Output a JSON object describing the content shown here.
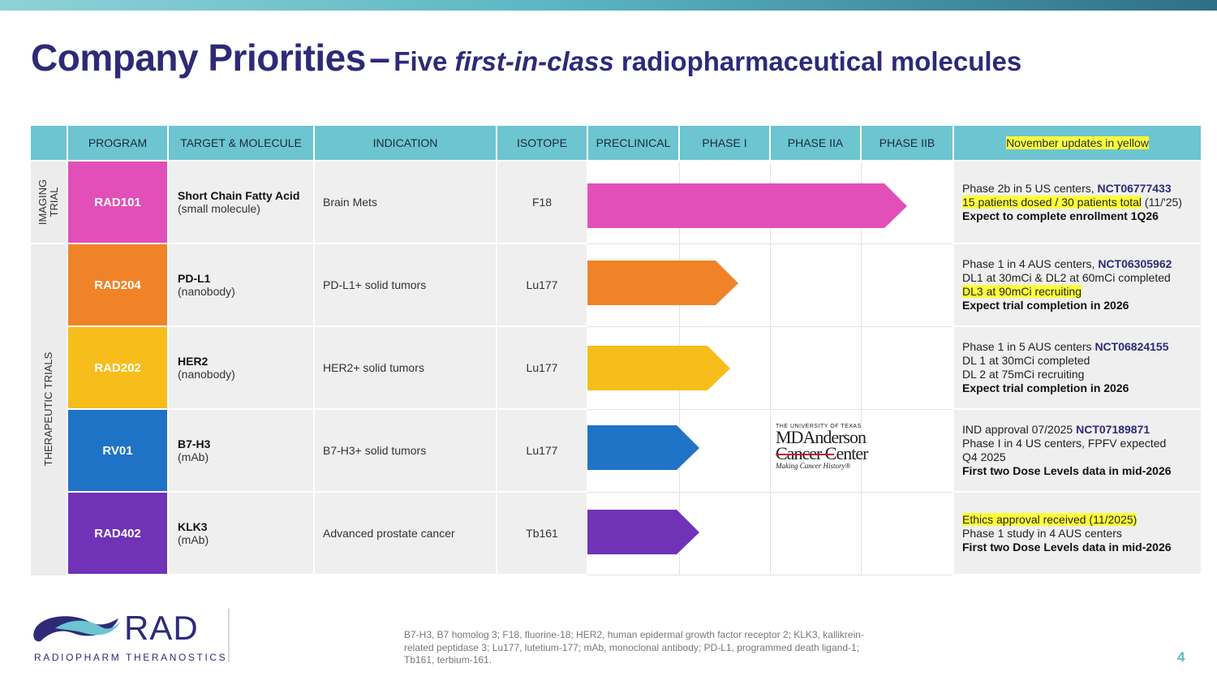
{
  "title": {
    "main": "Company Priorities",
    "dash": "–",
    "sub_pre": "Five ",
    "sub_em": "first-in-class",
    "sub_post": " radiopharmaceutical molecules"
  },
  "table": {
    "headers": {
      "program": "PROGRAM",
      "target": "TARGET & MOLECULE",
      "indication": "INDICATION",
      "isotope": "ISOTOPE",
      "preclinical": "PRECLINICAL",
      "phase1": "PHASE I",
      "phase2a": "PHASE IIA",
      "phase2b": "PHASE IIB",
      "updates": "November updates in yellow"
    },
    "groups": {
      "imaging_line1": "IMAGING",
      "imaging_line2": "TRIAL",
      "therapeutic": "THERAPEUTIC TRIALS"
    },
    "rows": [
      {
        "program": "RAD101",
        "color": "#e24fb8",
        "target": "Short Chain Fatty Acid",
        "molecule": "(small molecule)",
        "indication": "Brain Mets",
        "isotope": "F18",
        "progress_stage": "Phase IIB",
        "updates": [
          {
            "text": "Phase 2b in 5 US centers, ",
            "nct": "NCT06777433"
          },
          {
            "hl": "15 patients dosed / 30 patients total",
            "text": " (11/'25)"
          },
          {
            "bold": "Expect to complete enrollment 1Q26"
          }
        ]
      },
      {
        "program": "RAD204",
        "color": "#f08327",
        "target": "PD-L1",
        "molecule": "(nanobody)",
        "indication": "PD-L1+ solid tumors",
        "isotope": "Lu177",
        "progress_stage": "Phase I",
        "updates": [
          {
            "text": "Phase 1 in  4 AUS centers, ",
            "nct": "NCT06305962"
          },
          {
            "text": "DL1 at 30mCi & DL2 at 60mCi completed"
          },
          {
            "hl": "DL3  at 90mCi recruiting"
          },
          {
            "bold": "Expect trial completion in 2026"
          }
        ]
      },
      {
        "program": "RAD202",
        "color": "#f7bd1a",
        "target": "HER2",
        "molecule": "(nanobody)",
        "indication": "HER2+ solid tumors",
        "isotope": "Lu177",
        "progress_stage": "Phase I",
        "updates": [
          {
            "text": "Phase 1 in 5 AUS centers ",
            "nct": "NCT06824155"
          },
          {
            "text": "DL 1 at 30mCi completed"
          },
          {
            "text": "DL 2 at 75mCi recruiting"
          },
          {
            "bold": "Expect trial completion in 2026"
          }
        ]
      },
      {
        "program": "RV01",
        "color": "#1f73c6",
        "target": "B7-H3",
        "molecule": "(mAb)",
        "indication": "B7-H3+ solid tumors",
        "isotope": "Lu177",
        "progress_stage": "Preclinical",
        "updates": [
          {
            "text": "IND approval 07/2025 ",
            "nct": "NCT07189871"
          },
          {
            "text": "Phase I in 4 US centers, FPFV expected"
          },
          {
            "text": "Q4 2025"
          },
          {
            "bold": "First two Dose Levels data in mid-2026"
          }
        ]
      },
      {
        "program": "RAD402",
        "color": "#7033b8",
        "target": "KLK3",
        "molecule": "(mAb)",
        "indication": "Advanced prostate cancer",
        "isotope": "Tb161",
        "progress_stage": "Preclinical",
        "updates": [
          {
            "hl": "Ethics approval received (11/2025)"
          },
          {
            "text": "Phase 1 study in 4 AUS centers"
          },
          {
            "bold": "First two Dose Levels data in mid-2026"
          }
        ]
      }
    ]
  },
  "partner_logo": {
    "line1": "THE UNIVERSITY OF TEXAS",
    "line2": "MDAnderson",
    "line3": "Cancer Center",
    "line4": "Making Cancer History®"
  },
  "company_logo": {
    "name": "RAD",
    "tagline": "RADIOPHARM THERANOSTICS"
  },
  "footnote": "B7-H3, B7 homolog 3; F18, fluorine-18; HER2, human epidermal growth factor receptor 2; KLK3, kallikrein-related peptidase 3; Lu177, lutetium-177; mAb, monoclonal antibody; PD-L1, programmed death ligand-1; Tb161, terbium-161.",
  "page_number": "4",
  "colors": {
    "title": "#2e2a78",
    "header": "#6cc5d0",
    "highlight": "#ffff3a",
    "accent": "#5bb7c2"
  }
}
